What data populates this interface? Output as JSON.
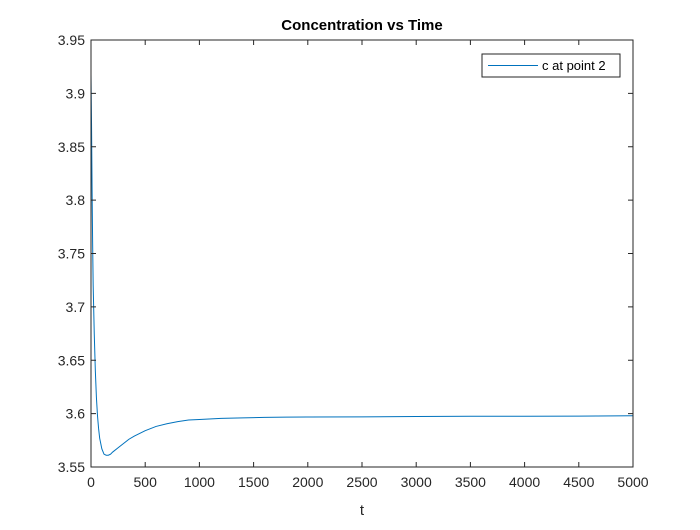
{
  "chart_data": {
    "type": "line",
    "title": "Concentration vs Time",
    "xlabel": "t",
    "ylabel": "",
    "xlim": [
      0,
      5000
    ],
    "ylim": [
      3.55,
      3.95
    ],
    "xticks": [
      0,
      500,
      1000,
      1500,
      2000,
      2500,
      3000,
      3500,
      4000,
      4500,
      5000
    ],
    "yticks": [
      3.55,
      3.6,
      3.65,
      3.7,
      3.75,
      3.8,
      3.85,
      3.9,
      3.95
    ],
    "xtick_labels": [
      "0",
      "500",
      "1000",
      "1500",
      "2000",
      "2500",
      "3000",
      "3500",
      "4000",
      "4500",
      "5000"
    ],
    "ytick_labels": [
      "3.55",
      "3.6",
      "3.65",
      "3.7",
      "3.75",
      "3.8",
      "3.85",
      "3.9",
      "3.95"
    ],
    "grid": false,
    "legend_position": "top-right",
    "series": [
      {
        "name": "c at point 2",
        "color": "#0072BD",
        "x": [
          0,
          5,
          10,
          15,
          20,
          30,
          40,
          50,
          60,
          70,
          80,
          100,
          120,
          140,
          160,
          180,
          200,
          250,
          300,
          350,
          400,
          500,
          600,
          700,
          800,
          900,
          1000,
          1200,
          1400,
          1600,
          1800,
          2000,
          2500,
          3000,
          3500,
          4000,
          4500,
          5000
        ],
        "y": [
          3.918,
          3.87,
          3.81,
          3.76,
          3.72,
          3.675,
          3.64,
          3.615,
          3.598,
          3.586,
          3.577,
          3.567,
          3.562,
          3.561,
          3.561,
          3.562,
          3.564,
          3.568,
          3.572,
          3.576,
          3.579,
          3.584,
          3.588,
          3.5905,
          3.5925,
          3.594,
          3.5945,
          3.5955,
          3.596,
          3.5965,
          3.5967,
          3.5968,
          3.597,
          3.5973,
          3.5975,
          3.5976,
          3.5977,
          3.598
        ]
      }
    ]
  }
}
